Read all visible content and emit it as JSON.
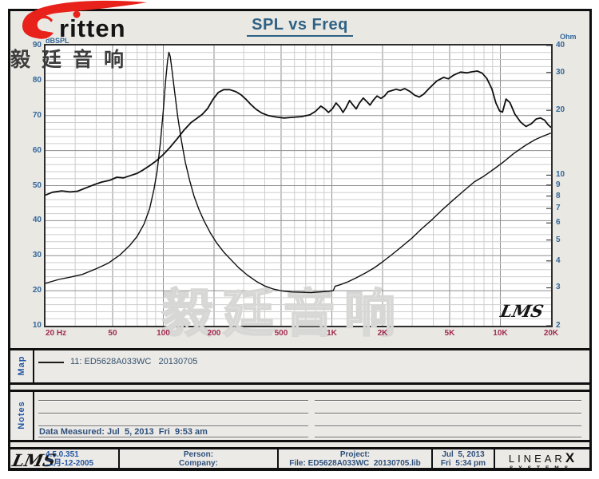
{
  "header": {
    "logo_text": "ritten",
    "logo_cn": "毅廷音响",
    "title": "SPL vs Freq"
  },
  "chart_data": {
    "type": "line",
    "title": "SPL vs Freq",
    "grid": true,
    "watermark": "毅廷音响",
    "corner_logo": "LMS",
    "x_axis": {
      "scale": "log",
      "min": 20,
      "max": 20000,
      "ticks": [
        20,
        50,
        100,
        200,
        500,
        1000,
        2000,
        5000,
        10000,
        20000
      ],
      "tick_labels": [
        "20 Hz",
        "50",
        "100",
        "200",
        "500",
        "1K",
        "2K",
        "5K",
        "10K",
        "20K"
      ]
    },
    "y_left": {
      "label": "dBSPL",
      "scale": "linear",
      "min": 10,
      "max": 90,
      "minor_step": 2,
      "major_step": 10,
      "ticks": [
        90,
        80,
        70,
        60,
        50,
        40,
        30,
        20,
        10
      ]
    },
    "y_right": {
      "label": "Ohm",
      "scale": "log",
      "min": 2,
      "max": 40,
      "ticks": [
        40,
        30,
        20,
        10,
        9,
        8,
        7,
        6,
        5,
        4,
        3,
        2
      ]
    },
    "series": [
      {
        "name": "SPL",
        "axis": "left",
        "color": "#0f0f0f",
        "width": 1.8,
        "points": [
          [
            20,
            47.3
          ],
          [
            22,
            48.1
          ],
          [
            25,
            48.5
          ],
          [
            28,
            48.2
          ],
          [
            31,
            48.4
          ],
          [
            35,
            49.4
          ],
          [
            39,
            50.3
          ],
          [
            43,
            51.0
          ],
          [
            48,
            51.5
          ],
          [
            53,
            52.4
          ],
          [
            58,
            52.2
          ],
          [
            64,
            52.9
          ],
          [
            70,
            53.5
          ],
          [
            76,
            54.5
          ],
          [
            83,
            55.7
          ],
          [
            91,
            57.1
          ],
          [
            100,
            58.9
          ],
          [
            110,
            61.0
          ],
          [
            121,
            63.4
          ],
          [
            133,
            65.9
          ],
          [
            146,
            68.0
          ],
          [
            158,
            69.2
          ],
          [
            170,
            70.3
          ],
          [
            183,
            72.0
          ],
          [
            197,
            74.6
          ],
          [
            212,
            76.6
          ],
          [
            228,
            77.4
          ],
          [
            248,
            77.4
          ],
          [
            270,
            76.8
          ],
          [
            290,
            75.9
          ],
          [
            310,
            74.6
          ],
          [
            330,
            73.2
          ],
          [
            355,
            71.8
          ],
          [
            385,
            70.7
          ],
          [
            420,
            70.0
          ],
          [
            465,
            69.6
          ],
          [
            520,
            69.3
          ],
          [
            590,
            69.5
          ],
          [
            660,
            69.7
          ],
          [
            740,
            70.2
          ],
          [
            800,
            71.2
          ],
          [
            860,
            72.7
          ],
          [
            905,
            72.0
          ],
          [
            955,
            70.9
          ],
          [
            1010,
            72.0
          ],
          [
            1060,
            73.6
          ],
          [
            1115,
            72.4
          ],
          [
            1165,
            70.9
          ],
          [
            1215,
            72.3
          ],
          [
            1275,
            74.3
          ],
          [
            1335,
            73.0
          ],
          [
            1395,
            71.9
          ],
          [
            1455,
            73.5
          ],
          [
            1535,
            75.0
          ],
          [
            1605,
            74.1
          ],
          [
            1685,
            73.0
          ],
          [
            1765,
            74.4
          ],
          [
            1855,
            75.6
          ],
          [
            1955,
            74.9
          ],
          [
            2055,
            75.6
          ],
          [
            2155,
            76.8
          ],
          [
            2255,
            77.1
          ],
          [
            2405,
            77.5
          ],
          [
            2555,
            77.2
          ],
          [
            2705,
            77.7
          ],
          [
            2905,
            76.9
          ],
          [
            3105,
            75.8
          ],
          [
            3305,
            75.3
          ],
          [
            3505,
            76.1
          ],
          [
            3805,
            77.9
          ],
          [
            4205,
            79.9
          ],
          [
            4605,
            80.9
          ],
          [
            4905,
            80.5
          ],
          [
            5305,
            81.6
          ],
          [
            5805,
            82.4
          ],
          [
            6305,
            82.2
          ],
          [
            6805,
            82.5
          ],
          [
            7305,
            82.7
          ],
          [
            7805,
            82.1
          ],
          [
            8305,
            80.6
          ],
          [
            8905,
            77.6
          ],
          [
            9405,
            73.6
          ],
          [
            9905,
            71.3
          ],
          [
            10305,
            71.0
          ],
          [
            10805,
            74.7
          ],
          [
            11405,
            73.7
          ],
          [
            12205,
            70.4
          ],
          [
            13205,
            68.1
          ],
          [
            14205,
            66.9
          ],
          [
            15305,
            67.7
          ],
          [
            16305,
            69.0
          ],
          [
            17305,
            69.3
          ],
          [
            18305,
            68.7
          ],
          [
            19105,
            67.5
          ],
          [
            20000,
            66.6
          ]
        ]
      },
      {
        "name": "Impedance",
        "axis": "right",
        "color": "#0f0f0f",
        "width": 1.4,
        "points": [
          [
            20,
            3.15
          ],
          [
            24,
            3.28
          ],
          [
            28,
            3.36
          ],
          [
            33,
            3.46
          ],
          [
            40,
            3.68
          ],
          [
            47,
            3.9
          ],
          [
            55,
            4.25
          ],
          [
            63,
            4.7
          ],
          [
            70,
            5.2
          ],
          [
            77,
            5.95
          ],
          [
            83,
            7.0
          ],
          [
            88,
            8.6
          ],
          [
            92,
            10.5
          ],
          [
            96,
            14.0
          ],
          [
            100,
            20.0
          ],
          [
            103,
            27.0
          ],
          [
            106,
            34.0
          ],
          [
            108,
            37.2
          ],
          [
            110,
            35.5
          ],
          [
            113,
            30.0
          ],
          [
            117,
            24.0
          ],
          [
            122,
            18.5
          ],
          [
            128,
            14.5
          ],
          [
            135,
            11.5
          ],
          [
            143,
            9.5
          ],
          [
            152,
            8.0
          ],
          [
            163,
            6.9
          ],
          [
            175,
            6.1
          ],
          [
            190,
            5.4
          ],
          [
            207,
            4.85
          ],
          [
            228,
            4.4
          ],
          [
            252,
            4.05
          ],
          [
            280,
            3.72
          ],
          [
            315,
            3.44
          ],
          [
            355,
            3.22
          ],
          [
            400,
            3.06
          ],
          [
            450,
            2.96
          ],
          [
            510,
            2.9
          ],
          [
            580,
            2.87
          ],
          [
            660,
            2.86
          ],
          [
            750,
            2.85
          ],
          [
            850,
            2.87
          ],
          [
            950,
            2.89
          ],
          [
            1020,
            2.91
          ],
          [
            1045,
            3.05
          ],
          [
            1120,
            3.1
          ],
          [
            1250,
            3.2
          ],
          [
            1400,
            3.34
          ],
          [
            1600,
            3.53
          ],
          [
            1800,
            3.73
          ],
          [
            2000,
            3.96
          ],
          [
            2300,
            4.31
          ],
          [
            2600,
            4.66
          ],
          [
            3000,
            5.12
          ],
          [
            3400,
            5.62
          ],
          [
            3900,
            6.18
          ],
          [
            4500,
            6.88
          ],
          [
            5200,
            7.62
          ],
          [
            6000,
            8.4
          ],
          [
            7000,
            9.3
          ],
          [
            8000,
            9.9
          ],
          [
            9200,
            10.7
          ],
          [
            10400,
            11.5
          ],
          [
            12000,
            12.6
          ],
          [
            14000,
            13.7
          ],
          [
            16000,
            14.6
          ],
          [
            18000,
            15.2
          ],
          [
            20000,
            15.7
          ]
        ]
      }
    ]
  },
  "map": {
    "label": "Map",
    "legend_text": "11: ED5628A033WC   20130705"
  },
  "notes": {
    "label": "Notes",
    "data_measured": "Data Measured: Jul  5, 2013  Fri  9:53 am"
  },
  "footer": {
    "lms_logo": "LMS",
    "version": "4.5.0.351",
    "version_date": "二月-12-2005",
    "person_label": "Person:",
    "company_label": "Company:",
    "project_label": "Project:",
    "file_label": "File: ED5628A033WC  20130705.lib",
    "date_line1": "Jul  5, 2013",
    "date_line2": "Fri  5:34 pm",
    "brand_line1": "LINEAR",
    "brand_x": "X",
    "brand_line2": "SYSTEMS"
  },
  "colors": {
    "axis_blue": "#336699",
    "freq_tick_maroon": "#a12d52",
    "title_blue": "#2e6184",
    "section_label_blue": "#2456a4",
    "logo_red": "#e8221a",
    "curve_black": "#0f0f0f",
    "panel_gray": "#e9e8e3"
  }
}
